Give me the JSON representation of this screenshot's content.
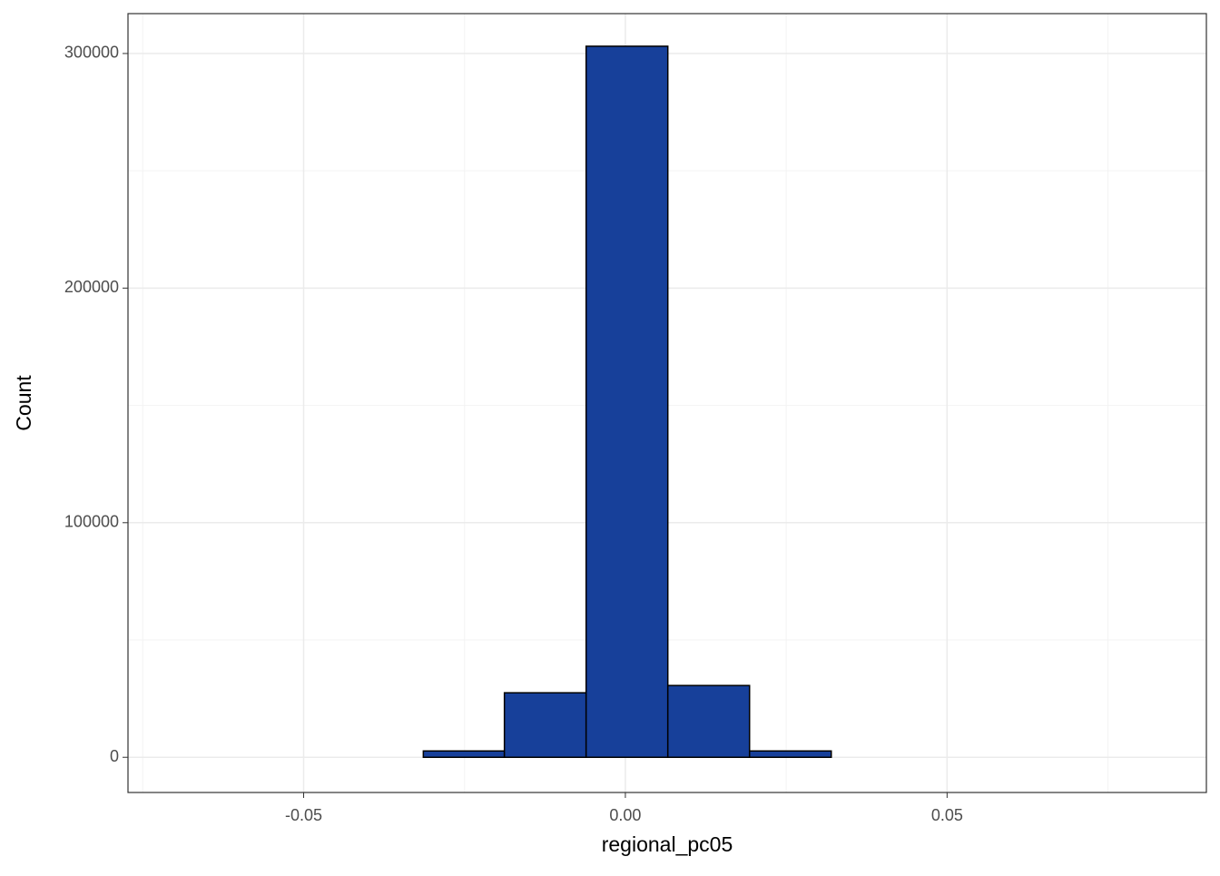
{
  "chart_data": {
    "type": "histogram",
    "x_label": "regional_pc05",
    "y_label": "Count",
    "bins": [
      -0.0695,
      -0.0568,
      -0.0441,
      -0.0314,
      -0.0188,
      -0.0061,
      0.0066,
      0.0193,
      0.032,
      0.0447,
      0.0574,
      0.0701,
      0.0828
    ],
    "counts": [
      0,
      0,
      0,
      2700,
      27500,
      303100,
      30600,
      2700,
      0,
      0,
      0,
      0
    ],
    "color": "#17409a",
    "edge_color": "#000000",
    "xlim": [
      -0.0773,
      0.0903
    ],
    "ylim": [
      -15000,
      317000
    ],
    "xticks": [
      {
        "value": -0.05,
        "label": "-0.05"
      },
      {
        "value": 0,
        "label": "0.00"
      },
      {
        "value": 0.05,
        "label": "0.05"
      }
    ],
    "yticks": [
      0,
      100000,
      200000,
      300000
    ],
    "minor_xticks": [
      -0.075,
      -0.025,
      0.025,
      0.075
    ],
    "minor_yticks": [
      50000,
      150000,
      250000
    ],
    "grid": true
  }
}
